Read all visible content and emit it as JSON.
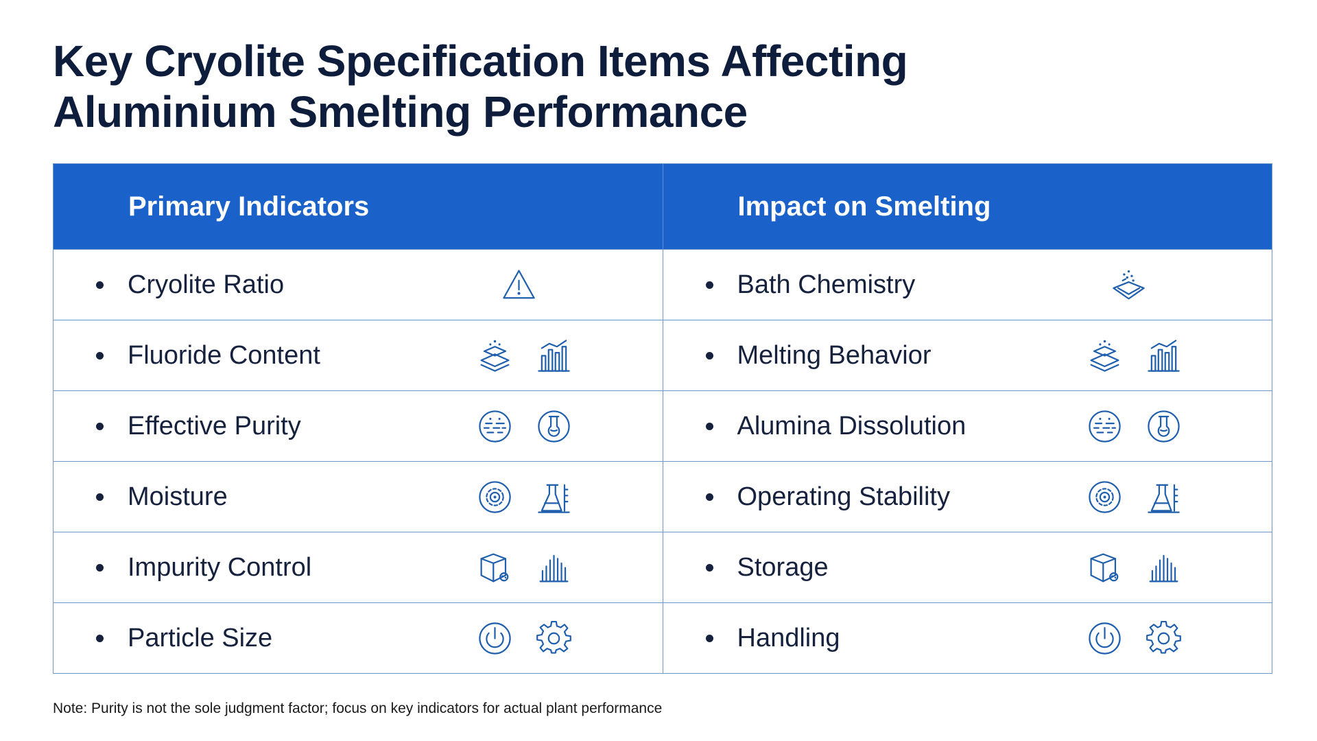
{
  "title": {
    "line1": "Key Cryolite Specification Items Affecting",
    "line2": "Aluminium Smelting Performance"
  },
  "table": {
    "headers": [
      "Primary Indicators",
      "Impact on Smelting"
    ],
    "rows": [
      {
        "left": "Cryolite Ratio",
        "right": "Bath Chemistry",
        "left_icons": [
          "warning-icon"
        ],
        "right_icons": [
          "bath-pot-icon"
        ]
      },
      {
        "left": "Fluoride Content",
        "right": "Melting Behavior",
        "left_icons": [
          "layers-icon",
          "bar-chart-icon"
        ],
        "right_icons": [
          "layers-icon",
          "bar-chart-icon"
        ]
      },
      {
        "left": "Effective Purity",
        "right": "Alumina Dissolution",
        "left_icons": [
          "particles-circle-icon",
          "flask-circle-icon"
        ],
        "right_icons": [
          "particles-circle-icon",
          "flask-circle-icon"
        ]
      },
      {
        "left": "Moisture",
        "right": "Operating Stability",
        "left_icons": [
          "gear-circle-icon",
          "lab-equipment-icon"
        ],
        "right_icons": [
          "gear-circle-icon",
          "lab-equipment-icon"
        ]
      },
      {
        "left": "Impurity Control",
        "right": "Storage",
        "left_icons": [
          "package-icon",
          "bars-dense-icon"
        ],
        "right_icons": [
          "package-icon",
          "bars-dense-icon"
        ]
      },
      {
        "left": "Particle Size",
        "right": "Handling",
        "left_icons": [
          "power-icon",
          "gear-icon"
        ],
        "right_icons": [
          "power-icon",
          "gear-icon"
        ]
      }
    ]
  },
  "note": "Note: Purity is not the sole judgment factor; focus on key indicators for actual plant performance",
  "colors": {
    "header_bg": "#1a62c9",
    "title": "#0f1d3d",
    "grid": "#6f98c8",
    "icon": "#1f5fae"
  }
}
